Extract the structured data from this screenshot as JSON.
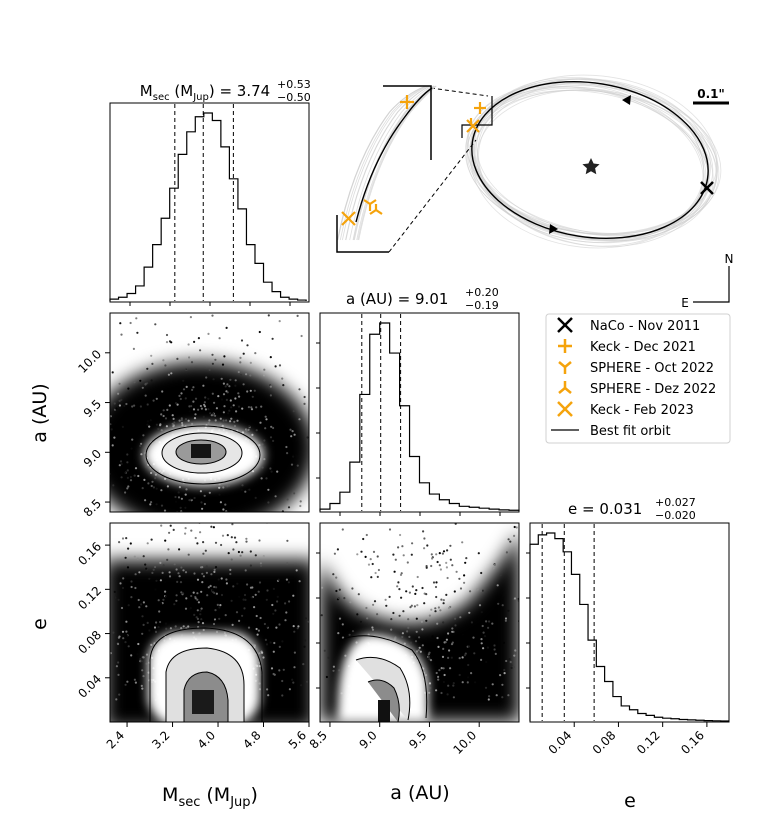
{
  "figure": {
    "title_mass": "M",
    "title_mass_sub": "sec",
    "title_mass_unit_open": " (M",
    "title_mass_unit_sub": "Jup",
    "title_mass_unit_close": ") = 3.74",
    "title_mass_plus": "+0.53",
    "title_mass_minus": "−0.50",
    "title_a": "a (AU) = 9.01",
    "title_a_plus": "+0.20",
    "title_a_minus": "−0.19",
    "title_e": "e = 0.031",
    "title_e_plus": "+0.027",
    "title_e_minus": "−0.020",
    "xlabel_mass_main": "M",
    "xlabel_mass_sub": "sec",
    "xlabel_mass_open": " (M",
    "xlabel_mass_sub2": "Jup",
    "xlabel_mass_close": ")",
    "xlabel_a": "a (AU)",
    "xlabel_e": "e",
    "ylabel_a": "a (AU)",
    "ylabel_e": "e",
    "scale_bar": "0.1\"",
    "compass_n": "N",
    "compass_e": "E"
  },
  "legend": [
    {
      "label": "NaCo - Nov 2011",
      "marker": "x-black"
    },
    {
      "label": "Keck - Dec 2021",
      "marker": "plus-orange"
    },
    {
      "label": "SPHERE - Oct 2022",
      "marker": "tri-down-orange"
    },
    {
      "label": "SPHERE - Dez 2022",
      "marker": "tri-up-orange"
    },
    {
      "label": "Keck - Feb 2023",
      "marker": "x-orange"
    },
    {
      "label": "Best fit orbit",
      "marker": "line-black"
    }
  ],
  "colors": {
    "orange": "#f5a30c",
    "black": "#000000",
    "grey_orbits": "#cfcfcf"
  },
  "chart_data": [
    {
      "type": "histogram",
      "name": "mass_marginal",
      "xlim": [
        2.1,
        5.6
      ],
      "x_ticks": [
        "2.4",
        "3.2",
        "4.0",
        "4.8",
        "5.6"
      ],
      "bin_edges": [
        2.1,
        2.25,
        2.4,
        2.55,
        2.7,
        2.85,
        3.0,
        3.15,
        3.3,
        3.45,
        3.6,
        3.75,
        3.9,
        4.05,
        4.2,
        4.35,
        4.5,
        4.65,
        4.8,
        4.95,
        5.1,
        5.25,
        5.4,
        5.55
      ],
      "counts": [
        0.01,
        0.02,
        0.04,
        0.08,
        0.18,
        0.3,
        0.44,
        0.6,
        0.78,
        0.9,
        0.98,
        1.0,
        0.96,
        0.82,
        0.65,
        0.49,
        0.3,
        0.2,
        0.1,
        0.05,
        0.02,
        0.01,
        0.005
      ],
      "quantiles": [
        3.24,
        3.74,
        4.27
      ]
    },
    {
      "type": "histogram",
      "name": "a_marginal",
      "xlim": [
        8.4,
        10.4
      ],
      "bin_edges": [
        8.4,
        8.5,
        8.6,
        8.7,
        8.8,
        8.9,
        9.0,
        9.1,
        9.2,
        9.3,
        9.4,
        9.5,
        9.6,
        9.7,
        9.8,
        9.9,
        10.0,
        10.1,
        10.2,
        10.3,
        10.4
      ],
      "counts": [
        0.01,
        0.04,
        0.1,
        0.26,
        0.62,
        0.94,
        1.0,
        0.84,
        0.56,
        0.29,
        0.15,
        0.09,
        0.06,
        0.04,
        0.025,
        0.02,
        0.015,
        0.01,
        0.006,
        0.004
      ],
      "quantiles": [
        8.82,
        9.01,
        9.21
      ]
    },
    {
      "type": "histogram",
      "name": "e_marginal",
      "xlim": [
        0.0,
        0.18
      ],
      "x_ticks": [
        "0.04",
        "0.08",
        "0.12",
        "0.16"
      ],
      "bin_edges": [
        0.0,
        0.0075,
        0.015,
        0.0225,
        0.03,
        0.0375,
        0.045,
        0.0525,
        0.06,
        0.0675,
        0.075,
        0.0825,
        0.09,
        0.0975,
        0.105,
        0.1125,
        0.12,
        0.1275,
        0.135,
        0.1425,
        0.15,
        0.1575,
        0.165,
        0.1725,
        0.18
      ],
      "counts": [
        0.94,
        0.99,
        1.0,
        0.97,
        0.9,
        0.78,
        0.62,
        0.43,
        0.29,
        0.21,
        0.13,
        0.08,
        0.06,
        0.04,
        0.03,
        0.02,
        0.015,
        0.012,
        0.008,
        0.006,
        0.004,
        0.002,
        0.001,
        0.0
      ],
      "quantiles": [
        0.011,
        0.031,
        0.058
      ]
    },
    {
      "type": "scatter-density",
      "name": "mass_vs_a",
      "xlim": [
        2.1,
        5.6
      ],
      "ylim": [
        8.4,
        10.4
      ],
      "y_ticks": [
        "8.5",
        "9.0",
        "9.5",
        "10.0"
      ],
      "center": [
        3.74,
        9.01
      ]
    },
    {
      "type": "scatter-density",
      "name": "mass_vs_e",
      "xlim": [
        2.1,
        5.6
      ],
      "ylim": [
        0.0,
        0.18
      ],
      "y_ticks": [
        "0.04",
        "0.08",
        "0.12",
        "0.16"
      ],
      "center": [
        3.74,
        0.025
      ]
    },
    {
      "type": "scatter-density",
      "name": "a_vs_e",
      "xlim": [
        8.4,
        10.4
      ],
      "ylim": [
        0.0,
        0.18
      ],
      "x_ticks": [
        "8.5",
        "9.0",
        "9.5",
        "10.0"
      ],
      "center": [
        8.95,
        0.02
      ]
    }
  ]
}
